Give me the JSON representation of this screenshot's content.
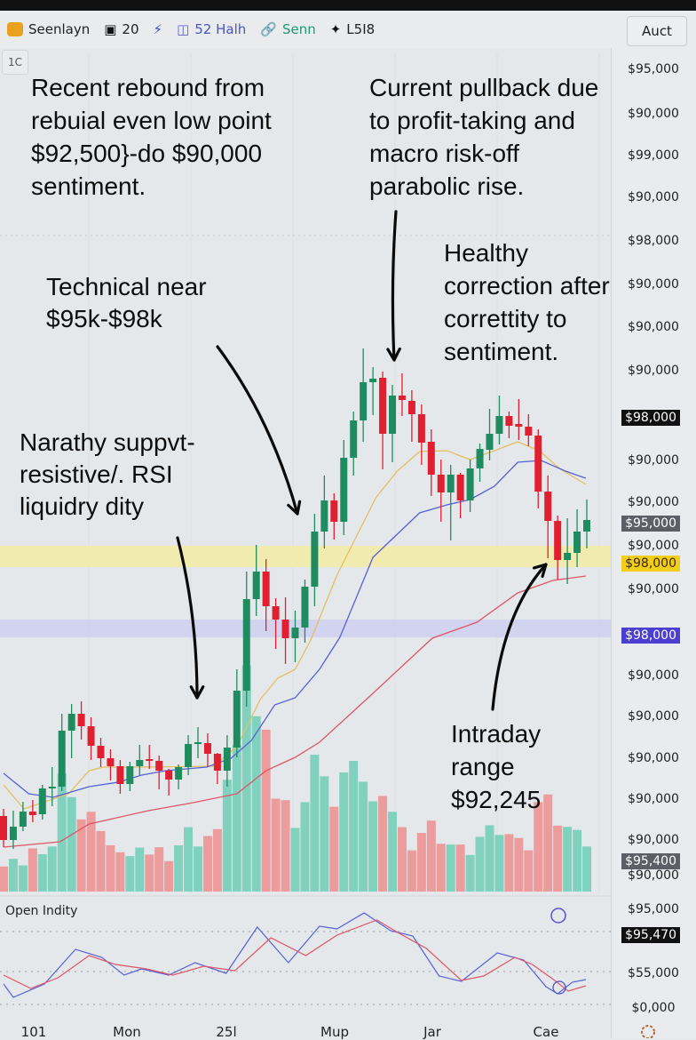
{
  "header": {
    "items": [
      {
        "icon": "app-logo-icon",
        "color": "#e8a21f",
        "label": "Seenlayn"
      },
      {
        "icon": "badge-icon",
        "color": "#111111",
        "label": "20"
      },
      {
        "icon": "lightning-icon",
        "color": "#3a4fd8",
        "label": ""
      },
      {
        "icon": "calendar-icon",
        "color": "#5a5fcf",
        "label": "52 Halh"
      },
      {
        "icon": "link-icon",
        "color": "#1f9a76",
        "label": "Senn"
      },
      {
        "icon": "sparkle-icon",
        "color": "#111111",
        "label": "L5I8"
      }
    ],
    "right_button": "Auct",
    "timeframe": "1C"
  },
  "annotations": {
    "a1": "Recent rebound from\nrebuial even low point\n$92,500}-do $90,000\nsentiment.",
    "a2": "Current pullback due\nto profit-taking and\nmacro risk-off\nparabolic rise.",
    "a3": "Technical near\n$95k-$98k",
    "a4": "Healthy\ncorrection after\ncorrettity to\nsentiment.",
    "a5": "Narathy suppvt-\nresistive/. RSI\nliquidry dity",
    "a6": "Intraday\nrange\n$92,245"
  },
  "colors": {
    "up": "#1e8c5e",
    "down": "#e01f30",
    "vol_up": "#80d2bf",
    "vol_down": "#ec9c9c",
    "ma_fast": "#e2c062",
    "ma_mid": "#5660d6",
    "ma_slow": "#dd5566",
    "zone_yellow": "#f3eba8",
    "zone_blue": "#cfd0ef",
    "tag_black": "#111111",
    "tag_gray": "#5c6066",
    "tag_yellow": "#f2cd1a",
    "tag_blue": "#4b3fd1"
  },
  "y_axis": {
    "labels": [
      {
        "text": "$95,000",
        "kind": "plain"
      },
      {
        "text": "$90,000",
        "kind": "plain"
      },
      {
        "text": "$99,000",
        "kind": "plain"
      },
      {
        "text": "$90,000",
        "kind": "plain"
      },
      {
        "text": "$98,000",
        "kind": "plain"
      },
      {
        "text": "$90,000",
        "kind": "plain"
      },
      {
        "text": "$90,000",
        "kind": "plain"
      },
      {
        "text": "$90,000",
        "kind": "plain"
      },
      {
        "text": "$98,000",
        "kind": "black"
      },
      {
        "text": "$90,000",
        "kind": "plain"
      },
      {
        "text": "$90,000",
        "kind": "plain"
      },
      {
        "text": "$95,000",
        "kind": "gray"
      },
      {
        "text": "$90,000",
        "kind": "plain"
      },
      {
        "text": "$98,000",
        "kind": "yellow"
      },
      {
        "text": "$90,000",
        "kind": "plain"
      },
      {
        "text": "$98,000",
        "kind": "blue"
      },
      {
        "text": "$90,000",
        "kind": "plain"
      },
      {
        "text": "$90,000",
        "kind": "plain"
      },
      {
        "text": "$90,000",
        "kind": "plain"
      },
      {
        "text": "$90,000",
        "kind": "plain"
      },
      {
        "text": "$90,000",
        "kind": "plain"
      },
      {
        "text": "$95,400",
        "kind": "gray"
      },
      {
        "text": "$90,000",
        "kind": "plain"
      }
    ],
    "osc_labels": [
      {
        "text": "$95,000",
        "kind": "plain"
      },
      {
        "text": "$95,470",
        "kind": "black"
      },
      {
        "text": "$55,000",
        "kind": "plain"
      },
      {
        "text": "$0,000",
        "kind": "plain"
      }
    ]
  },
  "x_axis": {
    "labels": [
      "101",
      "Mon",
      "25l",
      "Mup",
      "Jar",
      "Cae"
    ]
  },
  "oscillator": {
    "title": "Open Indity"
  },
  "chart_data": {
    "type": "candlestick",
    "ylim": [
      90000,
      99400
    ],
    "grid": true,
    "candles": [
      [
        90820,
        90900,
        90470,
        90550
      ],
      [
        90550,
        90880,
        90450,
        90700
      ],
      [
        90700,
        90980,
        90650,
        90870
      ],
      [
        90870,
        91000,
        90750,
        90830
      ],
      [
        90840,
        91170,
        90780,
        91130
      ],
      [
        91130,
        91370,
        90930,
        91150
      ],
      [
        91150,
        91970,
        91100,
        91780
      ],
      [
        91780,
        92080,
        91470,
        91970
      ],
      [
        91970,
        92110,
        91680,
        91830
      ],
      [
        91830,
        91930,
        91450,
        91610
      ],
      [
        91610,
        91700,
        91370,
        91470
      ],
      [
        91470,
        91570,
        91220,
        91380
      ],
      [
        91380,
        91450,
        91070,
        91180
      ],
      [
        91180,
        91430,
        91100,
        91380
      ],
      [
        91380,
        91620,
        91280,
        91450
      ],
      [
        91460,
        91620,
        91350,
        91440
      ],
      [
        91440,
        91500,
        91120,
        91330
      ],
      [
        91330,
        91350,
        91050,
        91230
      ],
      [
        91230,
        91400,
        91120,
        91370
      ],
      [
        91370,
        91730,
        91280,
        91630
      ],
      [
        91630,
        91820,
        91470,
        91650
      ],
      [
        91640,
        91750,
        91380,
        91520
      ],
      [
        91520,
        91530,
        91180,
        91330
      ],
      [
        91330,
        91730,
        91150,
        91590
      ],
      [
        91590,
        92470,
        91480,
        92230
      ],
      [
        92230,
        93570,
        92050,
        93260
      ],
      [
        93260,
        93870,
        93070,
        93570
      ],
      [
        93570,
        93710,
        92900,
        93180
      ],
      [
        93180,
        93270,
        92700,
        93030
      ],
      [
        93030,
        93280,
        92530,
        92820
      ],
      [
        92820,
        93130,
        92550,
        92940
      ],
      [
        92940,
        93480,
        92770,
        93400
      ],
      [
        93400,
        94220,
        93180,
        94020
      ],
      [
        94020,
        94650,
        93830,
        94370
      ],
      [
        94370,
        94450,
        93930,
        94130
      ],
      [
        94130,
        95050,
        93980,
        94850
      ],
      [
        94850,
        95370,
        94650,
        95270
      ],
      [
        95270,
        96080,
        95030,
        95700
      ],
      [
        95700,
        95870,
        95330,
        95740
      ],
      [
        95750,
        95820,
        94720,
        95120
      ],
      [
        95120,
        95670,
        94800,
        95550
      ],
      [
        95550,
        95800,
        95320,
        95500
      ],
      [
        95490,
        95610,
        95030,
        95340
      ],
      [
        95340,
        95450,
        94770,
        95020
      ],
      [
        95030,
        95170,
        94420,
        94660
      ],
      [
        94660,
        94830,
        94130,
        94460
      ],
      [
        94460,
        94770,
        93920,
        94660
      ],
      [
        94660,
        94680,
        94170,
        94370
      ],
      [
        94370,
        94830,
        94240,
        94730
      ],
      [
        94730,
        95010,
        94580,
        94950
      ],
      [
        94940,
        95400,
        94820,
        95120
      ],
      [
        95120,
        95550,
        95000,
        95320
      ],
      [
        95320,
        95370,
        95070,
        95210
      ],
      [
        95230,
        95510,
        95050,
        95200
      ],
      [
        95200,
        95340,
        94980,
        95100
      ],
      [
        95100,
        95170,
        94280,
        94470
      ],
      [
        94470,
        94650,
        93720,
        94140
      ],
      [
        94140,
        94200,
        93480,
        93700
      ],
      [
        93700,
        94170,
        93430,
        93780
      ],
      [
        93780,
        94270,
        93620,
        94020
      ],
      [
        94020,
        94380,
        93830,
        94150
      ]
    ],
    "candle_fields": [
      "open",
      "high",
      "low",
      "close"
    ],
    "volume": [
      65,
      85,
      68,
      112,
      97,
      117,
      307,
      245,
      187,
      207,
      157,
      120,
      102,
      92,
      114,
      96,
      115,
      79,
      120,
      167,
      117,
      144,
      162,
      290,
      380,
      587,
      455,
      420,
      241,
      237,
      165,
      232,
      355,
      299,
      220,
      309,
      339,
      285,
      234,
      248,
      207,
      167,
      107,
      152,
      184,
      124,
      122,
      122,
      95,
      142,
      172,
      147,
      149,
      139,
      107,
      232,
      252,
      171,
      168,
      160,
      117
    ],
    "moving_averages": [
      {
        "color_key": "ma_fast",
        "points": [
          [
            0,
            91170
          ],
          [
            2.1,
            90900
          ],
          [
            6.7,
            91070
          ],
          [
            8.8,
            91330
          ],
          [
            10.3,
            91370
          ],
          [
            14.2,
            91370
          ],
          [
            21.6,
            91380
          ],
          [
            24,
            91600
          ],
          [
            26.4,
            92130
          ],
          [
            28.2,
            92370
          ],
          [
            30,
            92470
          ],
          [
            31.6,
            92800
          ],
          [
            34.3,
            93530
          ],
          [
            38.3,
            94400
          ],
          [
            40.5,
            94700
          ],
          [
            42.8,
            94920
          ],
          [
            45.6,
            94930
          ],
          [
            48,
            94830
          ],
          [
            50.5,
            94930
          ],
          [
            52.9,
            95030
          ],
          [
            55.1,
            94930
          ],
          [
            57.2,
            94730
          ],
          [
            59.9,
            94550
          ]
        ]
      },
      {
        "color_key": "ma_mid",
        "points": [
          [
            0,
            91300
          ],
          [
            2.6,
            91070
          ],
          [
            5.1,
            91030
          ],
          [
            8.8,
            91150
          ],
          [
            11.8,
            91200
          ],
          [
            14.2,
            91280
          ],
          [
            16.7,
            91330
          ],
          [
            20.9,
            91370
          ],
          [
            23.4,
            91470
          ],
          [
            25.5,
            91670
          ],
          [
            27.9,
            92070
          ],
          [
            30,
            92150
          ],
          [
            32.5,
            92470
          ],
          [
            34.6,
            92830
          ],
          [
            38,
            93730
          ],
          [
            42.8,
            94230
          ],
          [
            45.6,
            94320
          ],
          [
            48,
            94380
          ],
          [
            50.5,
            94530
          ],
          [
            52.9,
            94800
          ],
          [
            55.3,
            94820
          ],
          [
            57.8,
            94700
          ],
          [
            59.9,
            94620
          ]
        ]
      },
      {
        "color_key": "ma_slow",
        "points": [
          [
            0,
            90470
          ],
          [
            5.8,
            90530
          ],
          [
            8.8,
            90730
          ],
          [
            14.9,
            90880
          ],
          [
            19.5,
            90970
          ],
          [
            24,
            91070
          ],
          [
            27,
            91330
          ],
          [
            30,
            91480
          ],
          [
            32.5,
            91650
          ],
          [
            38,
            92200
          ],
          [
            44.1,
            92820
          ],
          [
            48.7,
            93000
          ],
          [
            52.9,
            93330
          ],
          [
            56.5,
            93470
          ],
          [
            59.9,
            93520
          ]
        ]
      }
    ],
    "zones": [
      {
        "color_key": "zone_yellow",
        "from": 93620,
        "to": 93860
      },
      {
        "color_key": "zone_blue",
        "from": 92830,
        "to": 93030
      }
    ],
    "oscillator_series": [
      {
        "color_key": "ma_mid",
        "points": [
          [
            0,
            33
          ],
          [
            1,
            18
          ],
          [
            4.2,
            33
          ],
          [
            7.4,
            72
          ],
          [
            10.1,
            63
          ],
          [
            12.4,
            43
          ],
          [
            14.2,
            50
          ],
          [
            17,
            43
          ],
          [
            19.7,
            57
          ],
          [
            22.9,
            45
          ],
          [
            26.1,
            97
          ],
          [
            29.3,
            57
          ],
          [
            32.5,
            98
          ],
          [
            34.3,
            95
          ],
          [
            37.1,
            113
          ],
          [
            39.8,
            93
          ],
          [
            42.1,
            87
          ],
          [
            44.8,
            42
          ],
          [
            47.1,
            36
          ],
          [
            50.8,
            68
          ],
          [
            53.5,
            60
          ],
          [
            55.8,
            30
          ],
          [
            57,
            22
          ],
          [
            58.5,
            35
          ],
          [
            59.9,
            38
          ]
        ]
      },
      {
        "color_key": "ma_slow",
        "points": [
          [
            0,
            43
          ],
          [
            2.8,
            28
          ],
          [
            5.6,
            40
          ],
          [
            8.8,
            65
          ],
          [
            11.5,
            55
          ],
          [
            14.7,
            50
          ],
          [
            17.4,
            43
          ],
          [
            20.6,
            53
          ],
          [
            23.8,
            48
          ],
          [
            27.5,
            85
          ],
          [
            31.1,
            65
          ],
          [
            34.3,
            88
          ],
          [
            38.4,
            105
          ],
          [
            40.7,
            90
          ],
          [
            43.5,
            73
          ],
          [
            47.1,
            37
          ],
          [
            49.4,
            42
          ],
          [
            52.6,
            63
          ],
          [
            54.4,
            55
          ],
          [
            56.7,
            37
          ],
          [
            58.1,
            25
          ],
          [
            59.9,
            31
          ]
        ]
      }
    ]
  }
}
